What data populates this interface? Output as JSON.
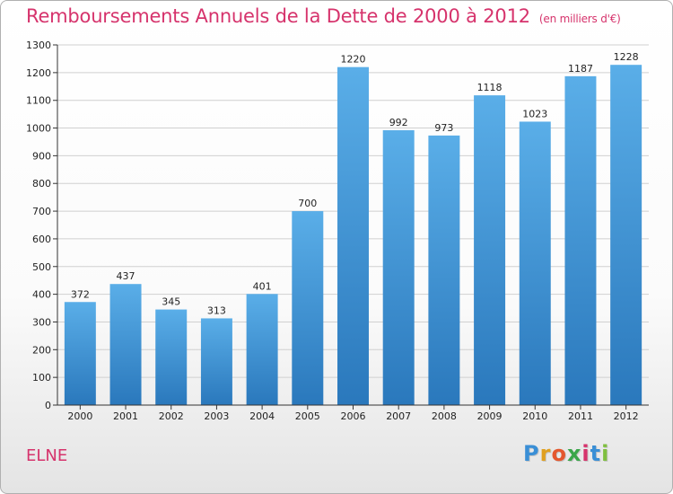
{
  "header": {
    "title": "Remboursements Annuels de la Dette de 2000 à 2012",
    "unit": "(en milliers d'€)"
  },
  "commune": "ELNE",
  "logo": {
    "text": "Proxiti",
    "letter_colors": [
      "#3a8fd6",
      "#e0a020",
      "#e4572e",
      "#3aa64a",
      "#d6336c",
      "#3a8fd6",
      "#7fbf3f"
    ]
  },
  "colors": {
    "bar_top": "#5aaee8",
    "bar_bottom": "#2a78bc",
    "grid": "#d0d0d0",
    "axis": "#333333",
    "title": "#d6336c"
  },
  "chart_data": {
    "type": "bar",
    "categories": [
      "2000",
      "2001",
      "2002",
      "2003",
      "2004",
      "2005",
      "2006",
      "2007",
      "2008",
      "2009",
      "2010",
      "2011",
      "2012"
    ],
    "values": [
      372,
      437,
      345,
      313,
      401,
      700,
      1220,
      992,
      973,
      1118,
      1023,
      1187,
      1228
    ],
    "ylim": [
      0,
      1300
    ],
    "yticks": [
      0,
      100,
      200,
      300,
      400,
      500,
      600,
      700,
      800,
      900,
      1000,
      1100,
      1200,
      1300
    ],
    "grid": true,
    "data_labels": true
  }
}
